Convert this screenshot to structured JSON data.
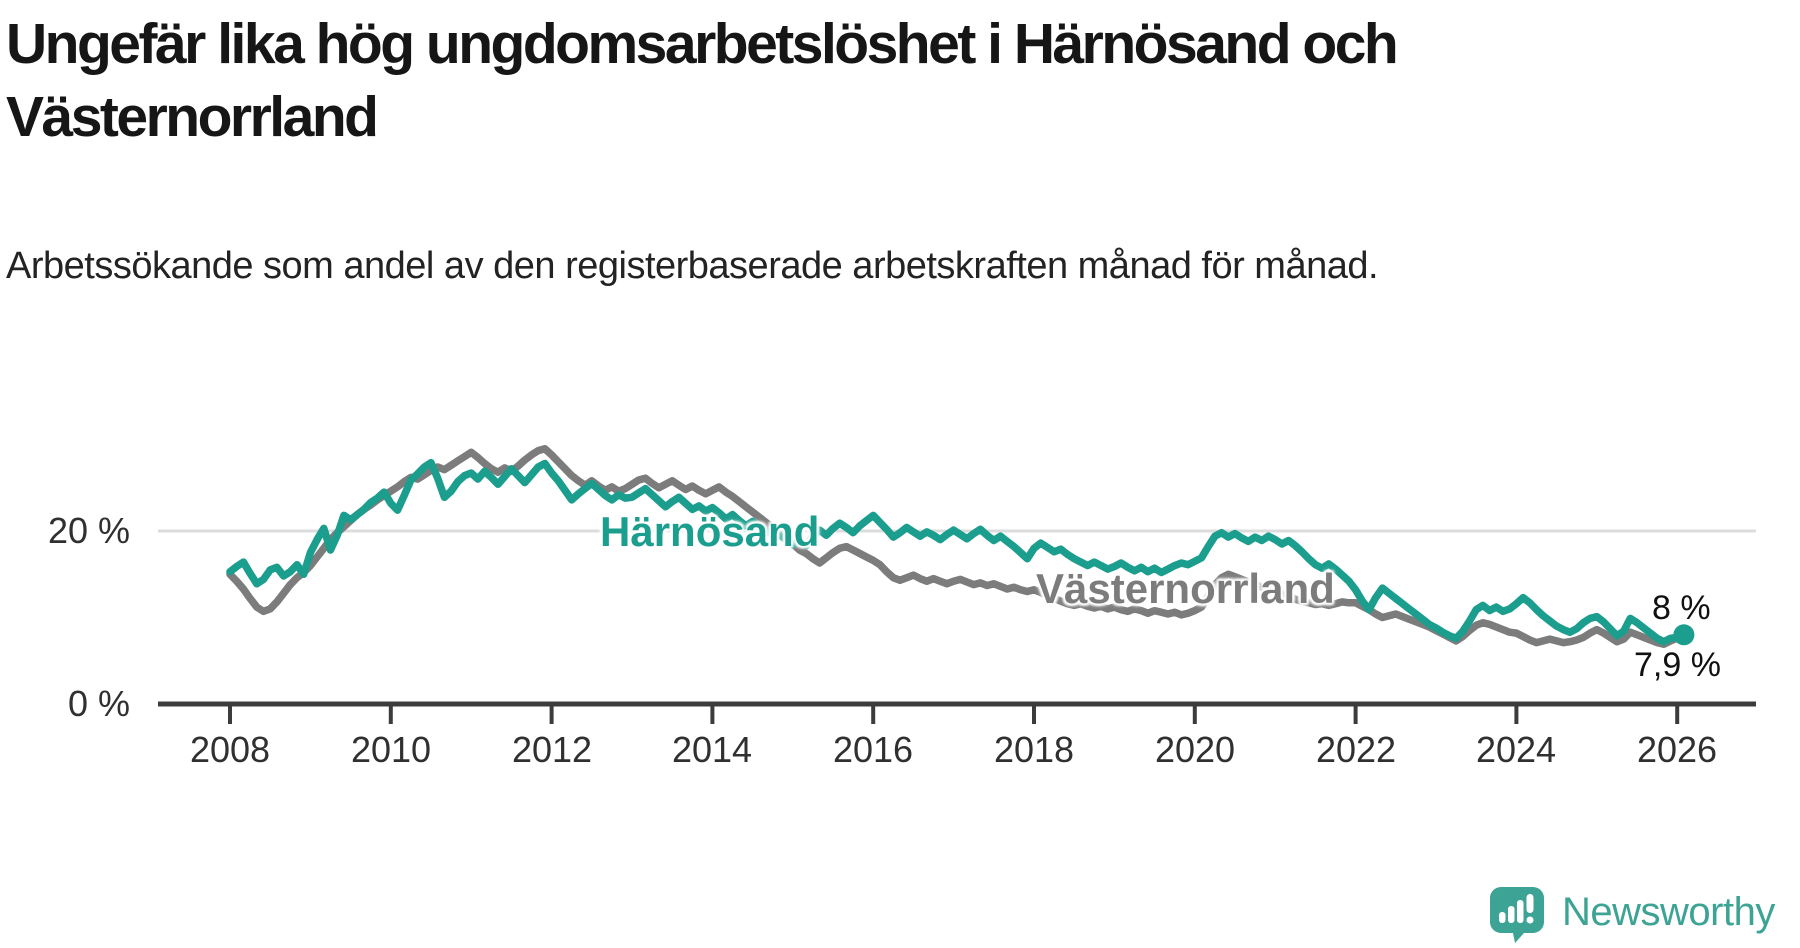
{
  "title": "Ungefär lika hög ungdomsarbetslöshet i Härnösand och Västernorrland",
  "subtitle": "Arbetssökande som andel av den registerbaserade arbetskraften månad för månad.",
  "branding": {
    "logo_text": "Newsworthy",
    "logo_icon": "newsworthy-speech-bubble-barchart-icon",
    "logo_color": "#3da394"
  },
  "colors": {
    "harnosand_line": "#1b9e8e",
    "vasternorrland_line": "#7c7c7c",
    "axis": "#3c3c3c",
    "gridline": "#dcdcdc",
    "end_dot": "#1b9e8e",
    "text": "#161616"
  },
  "chart_data": {
    "type": "line",
    "title": "Ungefär lika hög ungdomsarbetslöshet i Härnösand och Västernorrland",
    "subtitle": "Arbetssökande som andel av den registerbaserade arbetskraften månad för månad.",
    "x_unit": "month",
    "x_start": "2008-01",
    "x_end": "2026-02",
    "x_ticks": [
      "2008",
      "2010",
      "2012",
      "2014",
      "2016",
      "2018",
      "2020",
      "2022",
      "2024",
      "2026"
    ],
    "y_ticks": [
      {
        "value": 0,
        "label": "0 %"
      },
      {
        "value": 20,
        "label": "20 %"
      }
    ],
    "ylim": [
      0,
      31
    ],
    "grid": "y-only",
    "legend": "inline-labels",
    "series": [
      {
        "name": "Härnösand",
        "color": "#1b9e8e",
        "end_label": "8 %",
        "end_value": 8.0,
        "values": [
          15.3,
          15.9,
          16.4,
          15.1,
          13.9,
          14.4,
          15.5,
          15.8,
          14.8,
          15.3,
          16.1,
          15.0,
          17.5,
          19.0,
          20.3,
          17.8,
          19.5,
          21.8,
          21.3,
          21.9,
          22.5,
          23.3,
          23.8,
          24.5,
          23.2,
          22.4,
          24.1,
          25.9,
          26.6,
          27.4,
          27.9,
          26.1,
          23.9,
          24.6,
          25.7,
          26.4,
          26.7,
          26.0,
          26.9,
          26.2,
          25.4,
          26.3,
          27.2,
          26.4,
          25.6,
          26.5,
          27.4,
          27.8,
          26.7,
          25.8,
          24.7,
          23.6,
          24.3,
          24.9,
          25.5,
          24.8,
          24.1,
          23.6,
          24.2,
          23.8,
          23.9,
          24.4,
          24.9,
          24.2,
          23.5,
          22.8,
          23.4,
          23.9,
          23.2,
          22.5,
          22.9,
          22.3,
          22.7,
          22.1,
          21.4,
          21.9,
          21.2,
          20.6,
          21.1,
          20.4,
          19.8,
          20.3,
          19.6,
          19.0,
          18.4,
          18.9,
          18.3,
          19.4,
          20.1,
          19.5,
          20.3,
          20.9,
          20.4,
          19.8,
          20.6,
          21.2,
          21.8,
          21.0,
          20.2,
          19.3,
          19.8,
          20.4,
          19.9,
          19.4,
          19.9,
          19.5,
          19.0,
          19.6,
          20.1,
          19.6,
          19.1,
          19.7,
          20.2,
          19.5,
          18.9,
          19.4,
          18.8,
          18.2,
          17.5,
          16.8,
          18.0,
          18.6,
          18.1,
          17.6,
          17.9,
          17.3,
          16.8,
          16.4,
          16.0,
          16.4,
          16.0,
          15.6,
          15.9,
          16.3,
          15.8,
          15.4,
          15.8,
          15.3,
          15.7,
          15.2,
          15.6,
          16.0,
          16.3,
          16.1,
          16.5,
          16.9,
          18.2,
          19.4,
          19.8,
          19.3,
          19.7,
          19.2,
          18.8,
          19.3,
          18.9,
          19.4,
          19.0,
          18.5,
          18.9,
          18.3,
          17.6,
          16.8,
          16.1,
          15.7,
          16.2,
          15.6,
          14.9,
          14.2,
          13.2,
          11.9,
          10.9,
          12.3,
          13.4,
          12.8,
          12.2,
          11.6,
          11.0,
          10.4,
          9.8,
          9.2,
          8.8,
          8.3,
          7.9,
          7.6,
          8.4,
          9.6,
          10.9,
          11.4,
          10.8,
          11.2,
          10.7,
          11.0,
          11.6,
          12.3,
          11.7,
          10.9,
          10.2,
          9.6,
          9.0,
          8.6,
          8.3,
          8.7,
          9.4,
          9.9,
          10.1,
          9.5,
          8.7,
          7.9,
          8.4,
          9.9,
          9.4,
          8.8,
          8.2,
          7.6,
          7.2,
          7.6,
          7.7,
          8.0
        ]
      },
      {
        "name": "Västernorrland",
        "color": "#7c7c7c",
        "end_label": "7,9 %",
        "end_value": 7.9,
        "values": [
          15.0,
          14.2,
          13.3,
          12.2,
          11.2,
          10.7,
          11.0,
          11.8,
          12.8,
          13.8,
          14.6,
          15.2,
          16.0,
          17.0,
          18.0,
          19.0,
          19.8,
          20.5,
          21.2,
          21.9,
          22.5,
          23.0,
          23.6,
          24.1,
          24.6,
          25.1,
          25.7,
          26.2,
          26.0,
          26.5,
          27.0,
          27.4,
          27.1,
          27.6,
          28.1,
          28.6,
          29.1,
          28.5,
          27.8,
          27.2,
          26.8,
          27.3,
          26.9,
          27.5,
          28.2,
          28.8,
          29.3,
          29.5,
          28.8,
          28.0,
          27.2,
          26.4,
          25.8,
          25.3,
          25.8,
          25.2,
          24.7,
          25.1,
          24.6,
          24.9,
          25.4,
          25.9,
          26.1,
          25.5,
          25.0,
          25.4,
          25.8,
          25.3,
          24.8,
          25.2,
          24.7,
          24.3,
          24.7,
          25.1,
          24.5,
          24.0,
          23.4,
          22.8,
          22.2,
          21.6,
          21.0,
          20.4,
          19.8,
          19.2,
          18.5,
          17.8,
          17.4,
          16.8,
          16.3,
          16.9,
          17.5,
          18.0,
          18.2,
          17.8,
          17.4,
          17.0,
          16.6,
          16.1,
          15.3,
          14.6,
          14.3,
          14.6,
          14.9,
          14.5,
          14.2,
          14.5,
          14.2,
          13.9,
          14.2,
          14.4,
          14.1,
          13.8,
          14.0,
          13.7,
          13.9,
          13.6,
          13.3,
          13.5,
          13.2,
          13.0,
          13.2,
          12.9,
          12.5,
          12.2,
          11.9,
          11.6,
          11.4,
          11.6,
          11.3,
          11.1,
          11.3,
          11.0,
          11.2,
          10.9,
          10.7,
          11.0,
          10.8,
          10.5,
          10.8,
          10.6,
          10.4,
          10.6,
          10.3,
          10.5,
          10.8,
          11.2,
          12.5,
          13.8,
          14.6,
          15.0,
          14.7,
          14.4,
          14.1,
          13.8,
          13.5,
          13.2,
          13.0,
          12.7,
          12.4,
          12.1,
          11.9,
          11.7,
          11.5,
          11.6,
          11.4,
          11.6,
          11.8,
          11.7,
          11.7,
          11.3,
          10.9,
          10.4,
          10.0,
          10.2,
          10.4,
          10.1,
          9.8,
          9.5,
          9.2,
          8.9,
          8.5,
          8.1,
          7.7,
          7.3,
          7.8,
          8.5,
          9.1,
          9.4,
          9.2,
          8.9,
          8.6,
          8.3,
          8.2,
          7.8,
          7.4,
          7.1,
          7.3,
          7.5,
          7.3,
          7.1,
          7.2,
          7.4,
          7.7,
          8.2,
          8.6,
          8.2,
          7.7,
          7.2,
          7.5,
          8.3,
          8.0,
          7.7,
          7.4,
          7.1,
          6.9,
          7.3,
          7.6,
          7.9
        ]
      }
    ]
  }
}
